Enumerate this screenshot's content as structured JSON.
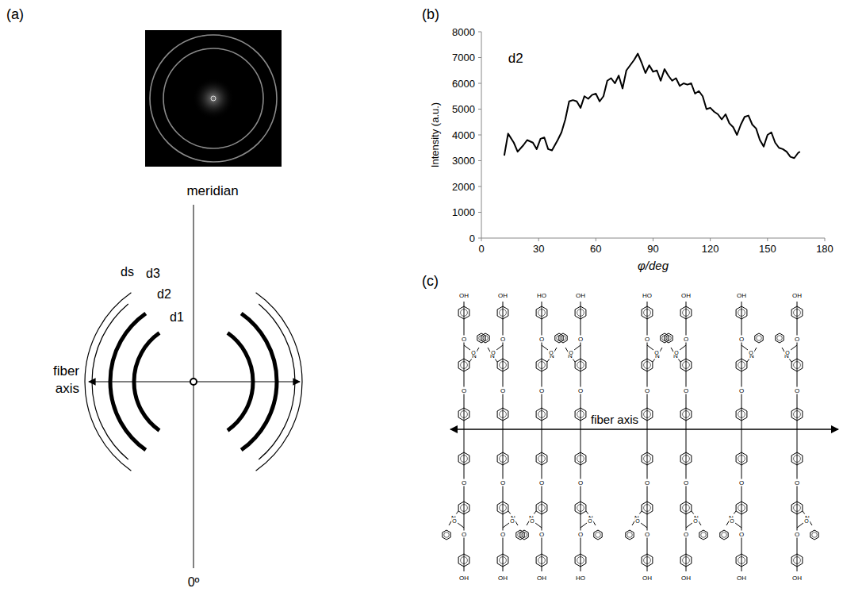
{
  "panel_labels": {
    "a": "(a)",
    "b": "(b)",
    "c": "(c)"
  },
  "chart_data": {
    "type": "line",
    "title": "d2",
    "x": [
      12,
      14,
      17,
      19,
      22,
      24,
      27,
      29,
      31,
      33,
      35,
      37,
      40,
      42,
      44,
      46,
      48,
      50,
      52,
      54,
      56,
      58,
      60,
      62,
      64,
      66,
      68,
      70,
      72,
      74,
      76,
      78,
      80,
      82,
      84,
      86,
      88,
      90,
      92,
      94,
      96,
      98,
      100,
      102,
      104,
      106,
      108,
      110,
      112,
      114,
      116,
      118,
      120,
      122,
      124,
      126,
      128,
      130,
      132,
      134,
      136,
      138,
      140,
      142,
      144,
      146,
      148,
      150,
      152,
      154,
      156,
      158,
      160,
      162,
      164,
      166,
      167
    ],
    "values": [
      3200,
      4050,
      3700,
      3350,
      3600,
      3800,
      3700,
      3450,
      3850,
      3900,
      3450,
      3400,
      3800,
      4100,
      4600,
      5300,
      5350,
      5300,
      5050,
      5500,
      5400,
      5550,
      5600,
      5300,
      5500,
      6100,
      6200,
      6000,
      6300,
      5800,
      6500,
      6700,
      6900,
      7150,
      6800,
      6400,
      6700,
      6450,
      6500,
      6100,
      6550,
      6300,
      6100,
      6200,
      5900,
      6000,
      5950,
      6000,
      5600,
      5700,
      5500,
      5000,
      5050,
      4900,
      4800,
      4600,
      4800,
      4450,
      4300,
      4000,
      4400,
      4700,
      4750,
      4400,
      4250,
      3800,
      3550,
      4000,
      4100,
      3700,
      3500,
      3450,
      3350,
      3150,
      3100,
      3300,
      3350
    ],
    "xlabel": "φ/deg",
    "ylabel": "Intensity (a.u.)",
    "xlim": [
      0,
      180
    ],
    "xticks": [
      0,
      30,
      60,
      90,
      120,
      150,
      180
    ],
    "ylim": [
      0,
      8000
    ],
    "yticks": [
      0,
      1000,
      2000,
      3000,
      4000,
      5000,
      6000,
      7000,
      8000
    ],
    "color": "#000000",
    "grid": false
  },
  "diagram": {
    "xrd_schematic": {
      "meridian": "meridian",
      "fiber_axis": "fiber axis",
      "zero_angle": "0º",
      "rings": [
        "d1",
        "d2",
        "d3",
        "ds"
      ]
    },
    "structure": {
      "fiber_axis": "fiber axis",
      "atoms": {
        "hydroxyl": "OH",
        "hydroxyl_left": "HO",
        "oxygen": "O",
        "nitrogen": "N"
      }
    }
  }
}
